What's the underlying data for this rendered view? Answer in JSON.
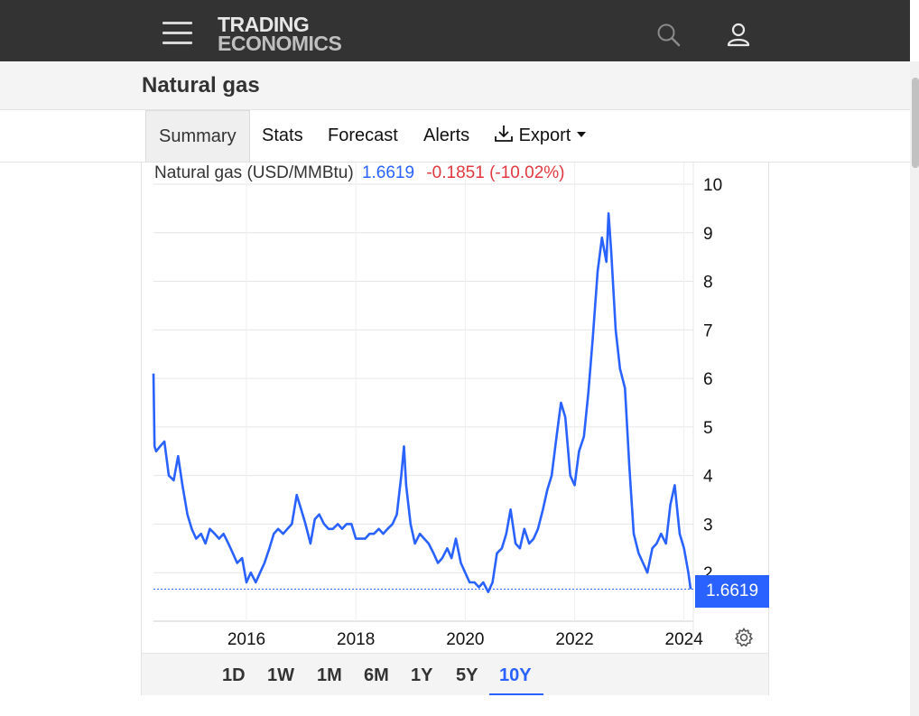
{
  "header": {
    "brand_line1": "TRADING",
    "brand_line2": "ECONOMICS",
    "menu_icon": "hamburger-menu-icon",
    "search_icon": "search-icon",
    "account_icon": "user-account-icon"
  },
  "page": {
    "title": "Natural gas"
  },
  "tabs": {
    "summary": "Summary",
    "stats": "Stats",
    "forecast": "Forecast",
    "alerts": "Alerts",
    "export": "Export",
    "export_icon": "download-icon"
  },
  "chart_header": {
    "name": "Natural gas (USD/MMBtu)",
    "price": "1.6619",
    "change": "-0.1851 (-10.02%)"
  },
  "colors": {
    "line": "#2962ff",
    "negative": "#e0383e",
    "topbar": "#333333"
  },
  "ranges": {
    "items": [
      "1D",
      "1W",
      "1M",
      "6M",
      "1Y",
      "5Y",
      "10Y"
    ],
    "selected": "10Y"
  },
  "settings_icon": "gear-icon",
  "chart_data": {
    "type": "line",
    "title": "Natural gas (USD/MMBtu)",
    "ylim": [
      1,
      10
    ],
    "yticks": [
      2,
      3,
      4,
      5,
      6,
      7,
      8,
      9,
      10
    ],
    "xlim": [
      2014.3,
      2024.17
    ],
    "xticks": [
      "2016",
      "2018",
      "2020",
      "2022",
      "2024"
    ],
    "grid": true,
    "last_value": "1.6619",
    "series": [
      {
        "name": "",
        "x": [
          2014.3,
          2014.32,
          2014.35,
          2014.42,
          2014.5,
          2014.58,
          2014.67,
          2014.75,
          2014.83,
          2014.92,
          2015.0,
          2015.08,
          2015.17,
          2015.25,
          2015.33,
          2015.42,
          2015.5,
          2015.58,
          2015.67,
          2015.75,
          2015.83,
          2015.92,
          2016.0,
          2016.08,
          2016.17,
          2016.25,
          2016.33,
          2016.42,
          2016.5,
          2016.58,
          2016.67,
          2016.75,
          2016.83,
          2016.92,
          2017.0,
          2017.08,
          2017.17,
          2017.25,
          2017.33,
          2017.42,
          2017.5,
          2017.58,
          2017.67,
          2017.75,
          2017.83,
          2017.92,
          2018.0,
          2018.08,
          2018.17,
          2018.25,
          2018.33,
          2018.42,
          2018.5,
          2018.58,
          2018.67,
          2018.75,
          2018.83,
          2018.88,
          2018.92,
          2019.0,
          2019.08,
          2019.17,
          2019.25,
          2019.33,
          2019.42,
          2019.5,
          2019.58,
          2019.67,
          2019.75,
          2019.83,
          2019.92,
          2020.0,
          2020.08,
          2020.17,
          2020.25,
          2020.33,
          2020.42,
          2020.5,
          2020.58,
          2020.67,
          2020.75,
          2020.83,
          2020.92,
          2021.0,
          2021.08,
          2021.17,
          2021.25,
          2021.33,
          2021.42,
          2021.5,
          2021.58,
          2021.67,
          2021.75,
          2021.83,
          2021.92,
          2022.0,
          2022.08,
          2022.17,
          2022.25,
          2022.33,
          2022.42,
          2022.5,
          2022.58,
          2022.62,
          2022.67,
          2022.75,
          2022.83,
          2022.92,
          2023.0,
          2023.08,
          2023.17,
          2023.25,
          2023.33,
          2023.42,
          2023.5,
          2023.58,
          2023.67,
          2023.75,
          2023.83,
          2023.92,
          2024.0,
          2024.08,
          2024.12
        ],
        "y": [
          6.1,
          4.6,
          4.5,
          4.6,
          4.7,
          4.0,
          3.9,
          4.4,
          3.8,
          3.2,
          2.9,
          2.7,
          2.8,
          2.6,
          2.9,
          2.8,
          2.7,
          2.8,
          2.6,
          2.4,
          2.2,
          2.3,
          1.8,
          2.0,
          1.8,
          2.0,
          2.2,
          2.5,
          2.8,
          2.9,
          2.8,
          2.9,
          3.0,
          3.6,
          3.3,
          3.0,
          2.6,
          3.1,
          3.2,
          3.0,
          2.9,
          2.9,
          3.0,
          2.9,
          3.0,
          3.0,
          2.7,
          2.7,
          2.7,
          2.8,
          2.8,
          2.9,
          2.8,
          2.9,
          3.0,
          3.2,
          4.0,
          4.6,
          3.8,
          3.0,
          2.6,
          2.8,
          2.7,
          2.6,
          2.4,
          2.2,
          2.3,
          2.5,
          2.3,
          2.7,
          2.2,
          2.0,
          1.8,
          1.8,
          1.7,
          1.8,
          1.6,
          1.8,
          2.4,
          2.5,
          2.8,
          3.3,
          2.6,
          2.5,
          2.9,
          2.6,
          2.7,
          2.9,
          3.3,
          3.7,
          4.0,
          4.8,
          5.5,
          5.2,
          4.0,
          3.8,
          4.5,
          4.8,
          5.7,
          6.8,
          8.2,
          8.9,
          8.4,
          9.4,
          8.6,
          7.0,
          6.2,
          5.8,
          4.2,
          2.8,
          2.4,
          2.2,
          2.0,
          2.5,
          2.6,
          2.8,
          2.6,
          3.4,
          3.8,
          2.8,
          2.5,
          2.0,
          1.66
        ]
      }
    ]
  }
}
